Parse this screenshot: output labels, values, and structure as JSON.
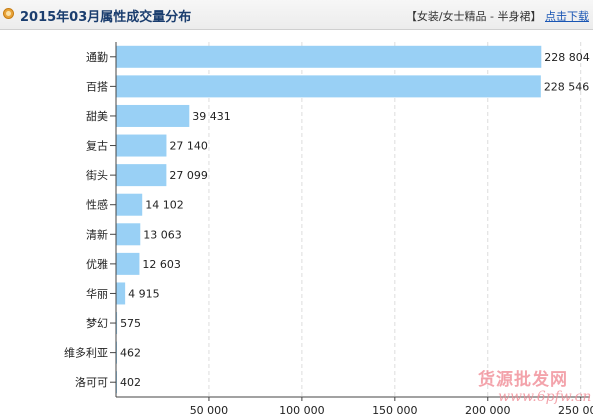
{
  "header": {
    "title": "2015年03月属性成交量分布",
    "category_info": "【女装/女士精品 - 半身裙】",
    "download_label": "点击下载"
  },
  "chart_data": {
    "type": "bar",
    "orientation": "horizontal",
    "title": "2015年03月属性成交量分布",
    "categories": [
      "通勤",
      "百搭",
      "甜美",
      "复古",
      "街头",
      "性感",
      "清新",
      "优雅",
      "华丽",
      "梦幻",
      "维多利亚",
      "洛可可"
    ],
    "values": [
      228804,
      228546,
      39431,
      27140,
      27099,
      14102,
      13063,
      12603,
      4915,
      575,
      462,
      402
    ],
    "value_labels": [
      "228 804",
      "228 546",
      "39 431",
      "27 140",
      "27 099",
      "14 102",
      "13 063",
      "12 603",
      "4 915",
      "575",
      "462",
      "402"
    ],
    "xticks": [
      "50 000",
      "100 000",
      "150 000",
      "200 000",
      "250 000"
    ],
    "xtick_values": [
      50000,
      100000,
      150000,
      200000,
      250000
    ],
    "xlim": [
      0,
      255000
    ],
    "grid": true,
    "bar_color": "#99d0f5"
  },
  "watermark": {
    "cn": "货源批发网",
    "en": "www.6pfw.cn"
  }
}
